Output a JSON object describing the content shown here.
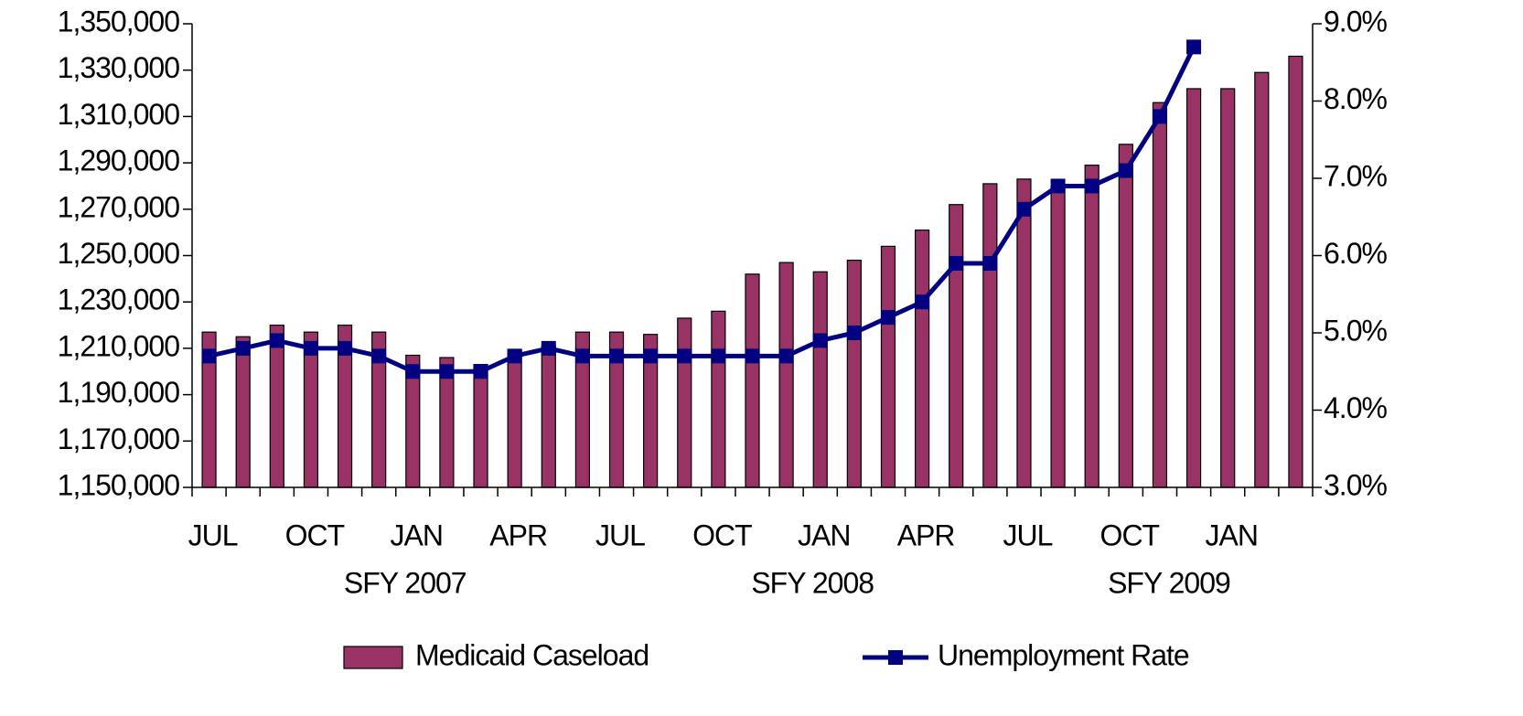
{
  "chart_data": {
    "type": "bar_line",
    "categories": [
      "JUL",
      null,
      null,
      "OCT",
      null,
      null,
      "JAN",
      null,
      null,
      "APR",
      null,
      null,
      "JUL",
      null,
      null,
      "OCT",
      null,
      null,
      "JAN",
      null,
      null,
      "APR",
      null,
      null,
      "JUL",
      null,
      null,
      "OCT",
      null,
      null,
      "JAN",
      null,
      null
    ],
    "groups": [
      {
        "label": "SFY 2007",
        "span": 12
      },
      {
        "label": "SFY 2008",
        "span": 12
      },
      {
        "label": "SFY 2009",
        "span": 9
      }
    ],
    "series": [
      {
        "name": "Medicaid Caseload",
        "type": "bar",
        "color": "#993366",
        "values": [
          1217000,
          1215000,
          1220000,
          1217000,
          1220000,
          1217000,
          1207000,
          1206000,
          1203000,
          1209000,
          1211000,
          1217000,
          1217000,
          1216000,
          1223000,
          1226000,
          1242000,
          1247000,
          1243000,
          1248000,
          1254000,
          1261000,
          1272000,
          1281000,
          1283000,
          1280000,
          1289000,
          1298000,
          1316000,
          1322000,
          1322000,
          1329000,
          1336000
        ]
      },
      {
        "name": "Unemployment Rate",
        "type": "line",
        "axis": "y2",
        "color": "#000080",
        "values": [
          4.7,
          4.8,
          4.9,
          4.8,
          4.8,
          4.7,
          4.5,
          4.5,
          4.5,
          4.7,
          4.8,
          4.7,
          4.7,
          4.7,
          4.7,
          4.7,
          4.7,
          4.7,
          4.9,
          5.0,
          5.2,
          5.4,
          5.9,
          5.9,
          6.6,
          6.9,
          6.9,
          7.1,
          7.8,
          8.7,
          null,
          null,
          null
        ]
      }
    ],
    "ylim": [
      1150000,
      1350000
    ],
    "yticks": [
      {
        "value": 1150000,
        "label": "1,150,000"
      },
      {
        "value": 1170000,
        "label": "1,170,000"
      },
      {
        "value": 1190000,
        "label": "1,190,000"
      },
      {
        "value": 1210000,
        "label": "1,210,000"
      },
      {
        "value": 1230000,
        "label": "1,230,000"
      },
      {
        "value": 1250000,
        "label": "1,250,000"
      },
      {
        "value": 1270000,
        "label": "1,270,000"
      },
      {
        "value": 1290000,
        "label": "1,290,000"
      },
      {
        "value": 1310000,
        "label": "1,310,000"
      },
      {
        "value": 1330000,
        "label": "1,330,000"
      },
      {
        "value": 1350000,
        "label": "1,350,000"
      }
    ],
    "y2lim": [
      3,
      9
    ],
    "y2ticks": [
      {
        "value": 3,
        "label": "3.0%"
      },
      {
        "value": 4,
        "label": "4.0%"
      },
      {
        "value": 5,
        "label": "5.0%"
      },
      {
        "value": 6,
        "label": "6.0%"
      },
      {
        "value": 7,
        "label": "7.0%"
      },
      {
        "value": 8,
        "label": "8.0%"
      },
      {
        "value": 9,
        "label": "9.0%"
      }
    ],
    "grid": false,
    "legend": "bottom"
  }
}
